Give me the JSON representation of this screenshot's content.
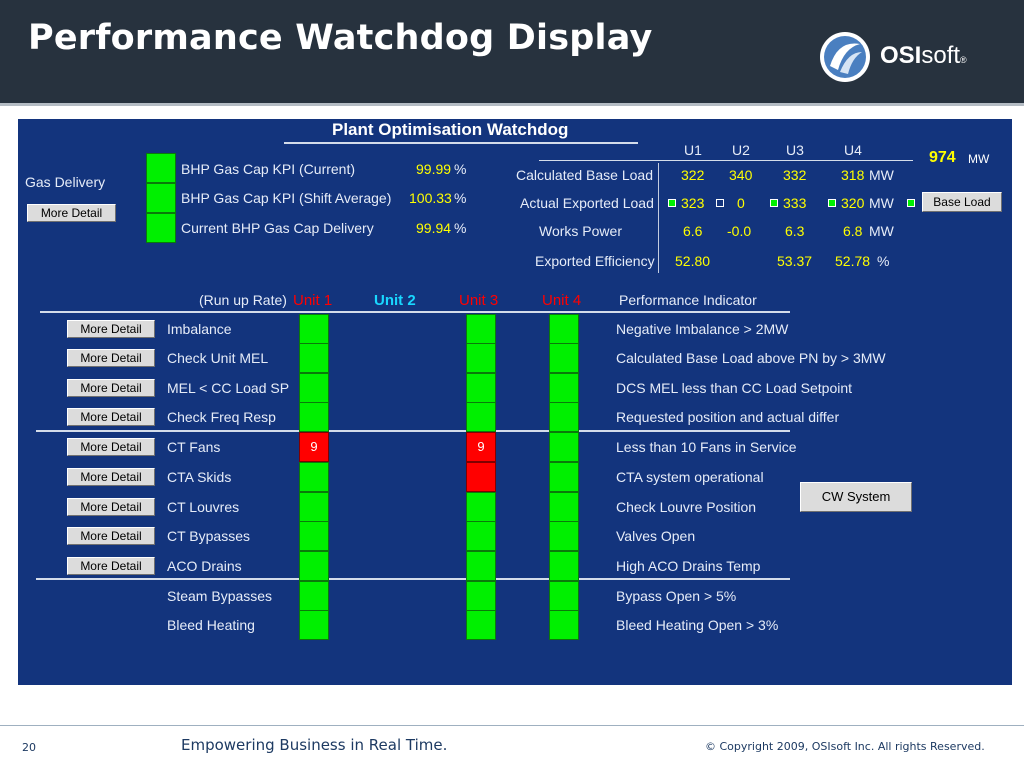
{
  "slide": {
    "title": "Performance Watchdog Display",
    "page_number": "20",
    "tagline": "Empowering Business in Real Time.",
    "copyright": "© Copyright 2009, OSIsoft Inc.  All rights Reserved."
  },
  "logo": {
    "text_bold": "OSI",
    "text_light": "soft",
    "reg": "®"
  },
  "watchdog": {
    "title": "Plant Optimisation Watchdog",
    "gas_delivery_label": "Gas Delivery",
    "more_detail": "More Detail",
    "kpis": [
      {
        "label": "BHP Gas Cap KPI (Current)",
        "value": "99.99",
        "unit": "%"
      },
      {
        "label": "BHP Gas Cap KPI (Shift Average)",
        "value": "100.33",
        "unit": "%"
      },
      {
        "label": "Current BHP Gas Cap Delivery",
        "value": "99.94",
        "unit": "%"
      }
    ],
    "unit_headers": [
      "U1",
      "U2",
      "U3",
      "U4"
    ],
    "total_mw": "974",
    "total_mw_unit": "MW",
    "load_rows": [
      {
        "label": "Calculated Base Load",
        "values": [
          "322",
          "340",
          "332",
          "318"
        ],
        "unit": "MW"
      },
      {
        "label": "Actual Exported Load",
        "values": [
          "323",
          "0",
          "333",
          "320"
        ],
        "unit": "MW"
      },
      {
        "label": "Works Power",
        "values": [
          "6.6",
          "-0.0",
          "6.3",
          "6.8"
        ],
        "unit": "MW"
      },
      {
        "label": "Exported Efficiency",
        "values": [
          "52.80",
          "",
          "53.37",
          "52.78"
        ],
        "unit": "%"
      }
    ],
    "base_load_button": "Base Load",
    "run_up_rate": "(Run up Rate)",
    "units": [
      {
        "label": "Unit 1",
        "color": "#ff0000"
      },
      {
        "label": "Unit 2",
        "color": "#19d7ff"
      },
      {
        "label": "Unit 3",
        "color": "#ff0000"
      },
      {
        "label": "Unit 4",
        "color": "#ff0000"
      }
    ],
    "performance_indicator_header": "Performance Indicator",
    "cw_system_button": "CW System",
    "checks": [
      {
        "name": "Imbalance",
        "indicator": "Negative Imbalance > 2MW",
        "more": true,
        "u1": "ok",
        "u3": "ok",
        "u4": "ok",
        "u1_text": "",
        "u3_text": ""
      },
      {
        "name": "Check Unit MEL",
        "indicator": "Calculated Base Load above PN by > 3MW",
        "more": true,
        "u1": "ok",
        "u3": "ok",
        "u4": "ok",
        "u1_text": "",
        "u3_text": ""
      },
      {
        "name": "MEL < CC Load SP",
        "indicator": "DCS MEL less than CC Load Setpoint",
        "more": true,
        "u1": "ok",
        "u3": "ok",
        "u4": "ok",
        "u1_text": "",
        "u3_text": ""
      },
      {
        "name": "Check Freq Resp",
        "indicator": "Requested position and actual differ",
        "more": true,
        "u1": "ok",
        "u3": "ok",
        "u4": "ok",
        "u1_text": "",
        "u3_text": ""
      },
      {
        "name": "CT Fans",
        "indicator": "Less than 10 Fans in Service",
        "more": true,
        "u1": "alarm",
        "u3": "alarm",
        "u4": "ok",
        "u1_text": "9",
        "u3_text": "9"
      },
      {
        "name": "CTA Skids",
        "indicator": "CTA system operational",
        "more": true,
        "u1": "ok",
        "u3": "alarm",
        "u4": "ok",
        "u1_text": "",
        "u3_text": ""
      },
      {
        "name": "CT Louvres",
        "indicator": "Check Louvre Position",
        "more": true,
        "u1": "ok",
        "u3": "ok",
        "u4": "ok",
        "u1_text": "",
        "u3_text": ""
      },
      {
        "name": "CT Bypasses",
        "indicator": "Valves Open",
        "more": true,
        "u1": "ok",
        "u3": "ok",
        "u4": "ok",
        "u1_text": "",
        "u3_text": ""
      },
      {
        "name": "ACO Drains",
        "indicator": "High ACO Drains Temp",
        "more": true,
        "u1": "ok",
        "u3": "ok",
        "u4": "ok",
        "u1_text": "",
        "u3_text": ""
      },
      {
        "name": "Steam Bypasses",
        "indicator": "Bypass Open > 5%",
        "more": false,
        "u1": "ok",
        "u3": "ok",
        "u4": "ok",
        "u1_text": "",
        "u3_text": ""
      },
      {
        "name": "Bleed Heating",
        "indicator": "Bleed Heating Open > 3%",
        "more": false,
        "u1": "ok",
        "u3": "ok",
        "u4": "ok",
        "u1_text": "",
        "u3_text": ""
      }
    ],
    "colors": {
      "ok": "#00f000",
      "alarm": "#ff0000",
      "panel": "#13347d",
      "value_text": "#ffff00"
    }
  }
}
